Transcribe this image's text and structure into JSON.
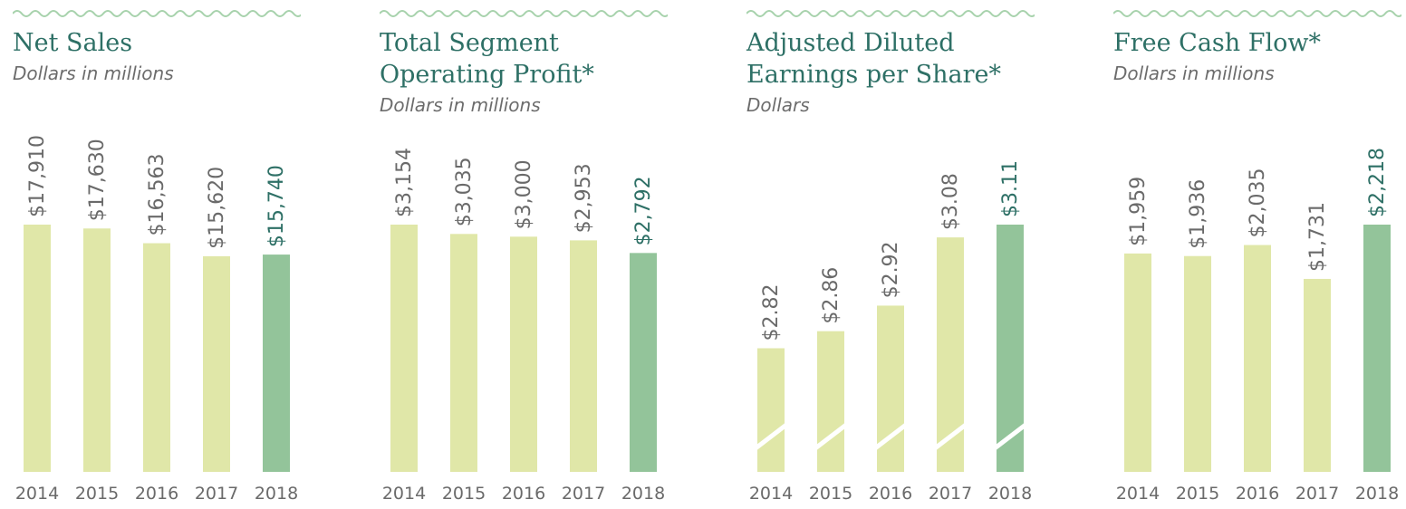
{
  "colors": {
    "bar": "#e0e7a8",
    "highlight": "#93c49a",
    "title": "#2e7066",
    "label": "#6a6a6a",
    "highlight_label": "#2e7066",
    "wave": "#a7d2ac"
  },
  "chart_data": [
    {
      "type": "bar",
      "title": "Net Sales",
      "subtitle": "Dollars in millions",
      "categories": [
        "2014",
        "2015",
        "2016",
        "2017",
        "2018"
      ],
      "values": [
        17910,
        17630,
        16563,
        15620,
        15740
      ],
      "value_labels": [
        "$17,910",
        "$17,630",
        "$16,563",
        "$15,620",
        "$15,740"
      ],
      "highlight_index": 4,
      "axis_break": false
    },
    {
      "type": "bar",
      "title": "Total Segment Operating Profit*",
      "subtitle": "Dollars in millions",
      "categories": [
        "2014",
        "2015",
        "2016",
        "2017",
        "2018"
      ],
      "values": [
        3154,
        3035,
        3000,
        2953,
        2792
      ],
      "value_labels": [
        "$3,154",
        "$3,035",
        "$3,000",
        "$2,953",
        "$2,792"
      ],
      "highlight_index": 4,
      "axis_break": false
    },
    {
      "type": "bar",
      "title": "Adjusted Diluted Earnings per Share*",
      "subtitle": "Dollars",
      "categories": [
        "2014",
        "2015",
        "2016",
        "2017",
        "2018"
      ],
      "values": [
        2.82,
        2.86,
        2.92,
        3.08,
        3.11
      ],
      "value_labels": [
        "$2.82",
        "$2.86",
        "$2.92",
        "$3.08",
        "$3.11"
      ],
      "highlight_index": 4,
      "axis_break": true
    },
    {
      "type": "bar",
      "title": "Free Cash Flow*",
      "subtitle": "Dollars in millions",
      "categories": [
        "2014",
        "2015",
        "2016",
        "2017",
        "2018"
      ],
      "values": [
        1959,
        1936,
        2035,
        1731,
        2218
      ],
      "value_labels": [
        "$1,959",
        "$1,936",
        "$2,035",
        "$1,731",
        "$2,218"
      ],
      "highlight_index": 4,
      "axis_break": false
    }
  ]
}
